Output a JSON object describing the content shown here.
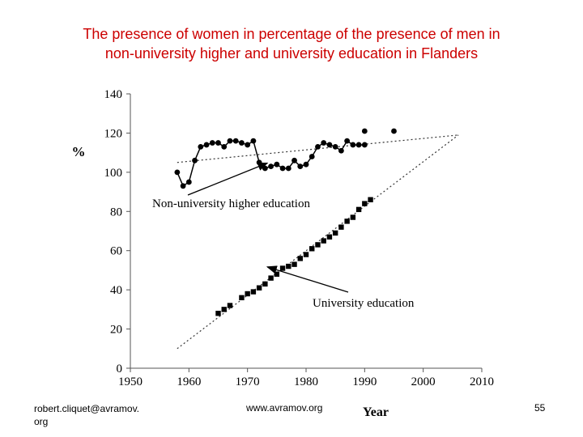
{
  "slide": {
    "title_line1": "The presence of women in percentage of the presence of men in",
    "title_line2": "non-university higher and university education in Flanders",
    "title_color": "#cc0000"
  },
  "footer": {
    "left_line1": "robert.cliquet@avramov.",
    "left_line2": "org",
    "center": "www.avramov.org",
    "page_number": "55"
  },
  "chart_data": {
    "type": "scatter",
    "xlabel": "Year",
    "ylabel": "%",
    "xlim": [
      1950,
      2010
    ],
    "ylim": [
      0,
      140
    ],
    "xticks": [
      1950,
      1960,
      1970,
      1980,
      1990,
      2000,
      2010
    ],
    "yticks": [
      0,
      20,
      40,
      60,
      80,
      100,
      120,
      140
    ],
    "series": [
      {
        "name": "Non-university higher education",
        "marker": "circle",
        "connected": true,
        "x": [
          1958,
          1959,
          1960,
          1961,
          1962,
          1963,
          1964,
          1965,
          1966,
          1967,
          1968,
          1969,
          1970,
          1971,
          1972,
          1973,
          1974,
          1975,
          1976,
          1977,
          1978,
          1979,
          1980,
          1981,
          1982,
          1983,
          1984,
          1985,
          1986,
          1987,
          1988,
          1989,
          1990
        ],
        "y": [
          100,
          93,
          95,
          106,
          113,
          114,
          115,
          115,
          113,
          116,
          116,
          115,
          114,
          116,
          105,
          102,
          103,
          104,
          102,
          102,
          106,
          103,
          104,
          108,
          113,
          115,
          114,
          113,
          111,
          116,
          114,
          114,
          114
        ],
        "extra_points": [
          {
            "x": 1990,
            "y": 121
          },
          {
            "x": 1995,
            "y": 121
          }
        ],
        "trend": {
          "x": [
            1958,
            2006
          ],
          "y": [
            105,
            119
          ]
        }
      },
      {
        "name": "University education",
        "marker": "square",
        "connected": false,
        "x": [
          1965,
          1966,
          1967,
          1969,
          1970,
          1971,
          1972,
          1973,
          1974,
          1975,
          1976,
          1977,
          1978,
          1979,
          1980,
          1981,
          1982,
          1983,
          1984,
          1985,
          1986,
          1987,
          1988,
          1989,
          1990,
          1991
        ],
        "y": [
          28,
          30,
          32,
          36,
          38,
          39,
          41,
          43,
          46,
          48,
          51,
          52,
          53,
          56,
          58,
          61,
          63,
          65,
          67,
          69,
          72,
          75,
          77,
          81,
          84,
          86
        ],
        "trend": {
          "x": [
            1958,
            2006
          ],
          "y": [
            10,
            119
          ]
        }
      }
    ],
    "annotations": [
      {
        "text": "Non-university higher education",
        "points_to": {
          "x": 1972,
          "y": 108
        }
      },
      {
        "text": "University education",
        "points_to": {
          "x": 1972,
          "y": 55
        }
      }
    ]
  }
}
